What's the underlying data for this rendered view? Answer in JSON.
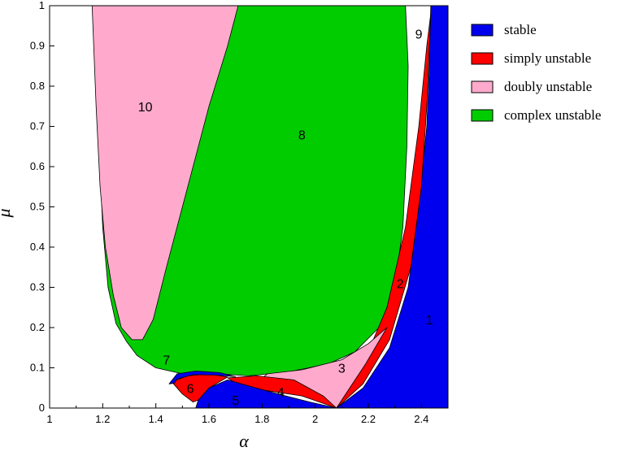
{
  "chart_data": {
    "type": "area",
    "title": "",
    "xlabel": "α",
    "ylabel": "μ",
    "xlim": [
      1,
      2.5
    ],
    "ylim": [
      0,
      1
    ],
    "x_ticks": [
      "1",
      "1.2",
      "1.4",
      "1.6",
      "1.8",
      "2",
      "2.2",
      "2.4"
    ],
    "y_ticks": [
      "0",
      "0.1",
      "0.2",
      "0.3",
      "0.4",
      "0.5",
      "0.6",
      "0.7",
      "0.8",
      "0.9",
      "1"
    ],
    "grid": false,
    "legend_position": "right",
    "colors": {
      "stable": "#0000ee",
      "simply_unstable": "#ff0000",
      "doubly_unstable": "#ffaacc",
      "complex_unstable": "#00cc00",
      "outline": "#000000"
    },
    "legend": [
      {
        "name": "stable",
        "color": "#0000ee"
      },
      {
        "name": "simply unstable",
        "color": "#ff0000"
      },
      {
        "name": "doubly unstable",
        "color": "#ffaacc"
      },
      {
        "name": "complex unstable",
        "color": "#00cc00"
      }
    ],
    "region_labels": [
      {
        "text": "10",
        "x": 1.36,
        "y": 0.75
      },
      {
        "text": "8",
        "x": 1.95,
        "y": 0.68
      },
      {
        "text": "9",
        "x": 2.39,
        "y": 0.93
      },
      {
        "text": "2",
        "x": 2.32,
        "y": 0.31
      },
      {
        "text": "1",
        "x": 2.43,
        "y": 0.22
      },
      {
        "text": "3",
        "x": 2.1,
        "y": 0.1
      },
      {
        "text": "4",
        "x": 1.87,
        "y": 0.04
      },
      {
        "text": "5",
        "x": 1.7,
        "y": 0.02
      },
      {
        "text": "6",
        "x": 1.53,
        "y": 0.05
      },
      {
        "text": "7",
        "x": 1.44,
        "y": 0.12
      }
    ],
    "regions": [
      {
        "name": "complex unstable",
        "key": "complex_unstable",
        "points": [
          [
            1.29,
            0.165
          ],
          [
            1.25,
            0.21
          ],
          [
            1.22,
            0.3
          ],
          [
            1.2,
            0.45
          ],
          [
            1.19,
            0.6
          ],
          [
            1.18,
            0.8
          ],
          [
            1.17,
            1.0
          ],
          [
            2.34,
            1.0
          ],
          [
            2.35,
            0.85
          ],
          [
            2.345,
            0.65
          ],
          [
            2.33,
            0.45
          ],
          [
            2.3,
            0.3
          ],
          [
            2.24,
            0.2
          ],
          [
            2.15,
            0.14
          ],
          [
            2.05,
            0.11
          ],
          [
            1.9,
            0.09
          ],
          [
            1.75,
            0.08
          ],
          [
            1.62,
            0.086
          ],
          [
            1.5,
            0.085
          ],
          [
            1.4,
            0.1
          ],
          [
            1.33,
            0.13
          ]
        ]
      },
      {
        "name": "doubly unstable",
        "key": "doubly_unstable",
        "points": [
          [
            1.31,
            0.17
          ],
          [
            1.27,
            0.2
          ],
          [
            1.24,
            0.28
          ],
          [
            1.21,
            0.4
          ],
          [
            1.19,
            0.55
          ],
          [
            1.175,
            0.75
          ],
          [
            1.16,
            1.0
          ],
          [
            1.71,
            1.0
          ],
          [
            1.67,
            0.9
          ],
          [
            1.6,
            0.75
          ],
          [
            1.52,
            0.55
          ],
          [
            1.44,
            0.35
          ],
          [
            1.39,
            0.22
          ],
          [
            1.35,
            0.17
          ]
        ]
      },
      {
        "name": "stable",
        "key": "stable",
        "points": [
          [
            2.34,
            1.0
          ],
          [
            2.5,
            1.0
          ],
          [
            2.5,
            0.0
          ],
          [
            2.08,
            0.0
          ],
          [
            2.18,
            0.05
          ],
          [
            2.28,
            0.15
          ],
          [
            2.35,
            0.3
          ],
          [
            2.39,
            0.5
          ],
          [
            2.42,
            0.7
          ],
          [
            2.43,
            0.85
          ],
          [
            2.435,
            1.0
          ]
        ]
      },
      {
        "name": "simply unstable",
        "key": "simply_unstable",
        "points": [
          [
            2.08,
            0.0
          ],
          [
            2.18,
            0.06
          ],
          [
            2.28,
            0.17
          ],
          [
            2.36,
            0.35
          ],
          [
            2.4,
            0.55
          ],
          [
            2.42,
            0.75
          ],
          [
            2.435,
            0.98
          ],
          [
            2.42,
            0.9
          ],
          [
            2.39,
            0.7
          ],
          [
            2.34,
            0.45
          ],
          [
            2.27,
            0.25
          ],
          [
            2.18,
            0.11
          ]
        ]
      },
      {
        "name": "doubly unstable",
        "key": "doubly_unstable",
        "points": [
          [
            2.08,
            0.0
          ],
          [
            2.19,
            0.11
          ],
          [
            2.27,
            0.2
          ],
          [
            2.2,
            0.16
          ],
          [
            2.1,
            0.12
          ],
          [
            1.95,
            0.095
          ],
          [
            1.82,
            0.085
          ],
          [
            1.8,
            0.075
          ],
          [
            1.95,
            0.04
          ]
        ]
      },
      {
        "name": "simply unstable",
        "key": "simply_unstable",
        "points": [
          [
            1.67,
            0.075
          ],
          [
            1.78,
            0.08
          ],
          [
            1.92,
            0.07
          ],
          [
            2.03,
            0.03
          ],
          [
            2.08,
            0.0
          ],
          [
            1.95,
            0.03
          ],
          [
            1.8,
            0.045
          ],
          [
            1.7,
            0.062
          ]
        ]
      },
      {
        "name": "stable",
        "key": "stable",
        "points": [
          [
            1.55,
            0.0
          ],
          [
            2.08,
            0.0
          ],
          [
            1.98,
            0.015
          ],
          [
            1.86,
            0.035
          ],
          [
            1.75,
            0.055
          ],
          [
            1.67,
            0.07
          ],
          [
            1.6,
            0.05
          ],
          [
            1.56,
            0.02
          ]
        ]
      },
      {
        "name": "simply unstable",
        "key": "simply_unstable",
        "points": [
          [
            1.46,
            0.065
          ],
          [
            1.52,
            0.08
          ],
          [
            1.6,
            0.085
          ],
          [
            1.67,
            0.077
          ],
          [
            1.6,
            0.05
          ],
          [
            1.56,
            0.02
          ],
          [
            1.54,
            0.015
          ],
          [
            1.5,
            0.035
          ]
        ]
      },
      {
        "name": "stable",
        "key": "stable",
        "points": [
          [
            1.45,
            0.06
          ],
          [
            1.48,
            0.085
          ],
          [
            1.55,
            0.092
          ],
          [
            1.64,
            0.088
          ],
          [
            1.7,
            0.078
          ],
          [
            1.62,
            0.082
          ],
          [
            1.54,
            0.083
          ],
          [
            1.48,
            0.072
          ],
          [
            1.47,
            0.062
          ]
        ]
      }
    ]
  }
}
